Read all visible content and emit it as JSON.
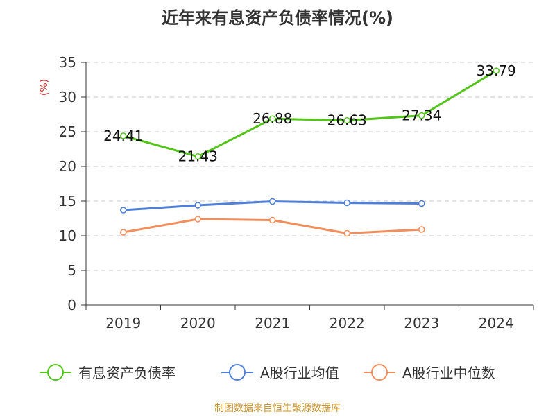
{
  "chart_data": {
    "type": "line",
    "title": "近年来有息资产负债率情况(%)",
    "ylabel": "(%)",
    "xlabel": "",
    "categories": [
      "2019",
      "2020",
      "2021",
      "2022",
      "2023",
      "2024"
    ],
    "ylim": [
      0,
      35
    ],
    "yticks": [
      0,
      5,
      10,
      15,
      20,
      25,
      30,
      35
    ],
    "grid": true,
    "legend_position": "bottom",
    "series": [
      {
        "name": "有息资产负债率",
        "color": "#52c41a",
        "values": [
          24.41,
          21.43,
          26.88,
          26.63,
          27.34,
          33.79
        ],
        "labels": [
          "24.41",
          "21.43",
          "26.88",
          "26.63",
          "27.34",
          "33.79"
        ]
      },
      {
        "name": "A股行业均值",
        "color": "#4e7fd9",
        "values": [
          13.7,
          14.4,
          14.95,
          14.75,
          14.65,
          null
        ]
      },
      {
        "name": "A股行业中位数",
        "color": "#f28e5b",
        "values": [
          10.5,
          12.4,
          12.25,
          10.35,
          10.9,
          null
        ]
      }
    ]
  },
  "source": "制图数据来自恒生聚源数据库"
}
